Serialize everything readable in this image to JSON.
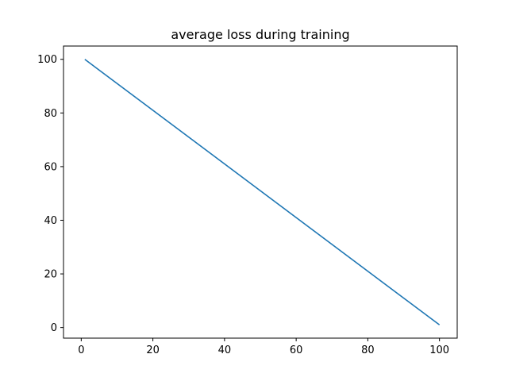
{
  "chart_data": {
    "type": "line",
    "title": "average loss during training",
    "xlabel": "",
    "ylabel": "",
    "xlim": [
      -4.95,
      104.95
    ],
    "ylim": [
      -3.95,
      104.95
    ],
    "grid": false,
    "xticks": [
      0,
      20,
      40,
      60,
      80,
      100
    ],
    "yticks": [
      0,
      20,
      40,
      60,
      80,
      100
    ],
    "series": [
      {
        "color": "#1f77b4",
        "x": [
          1,
          100
        ],
        "y": [
          100,
          1
        ]
      }
    ]
  }
}
